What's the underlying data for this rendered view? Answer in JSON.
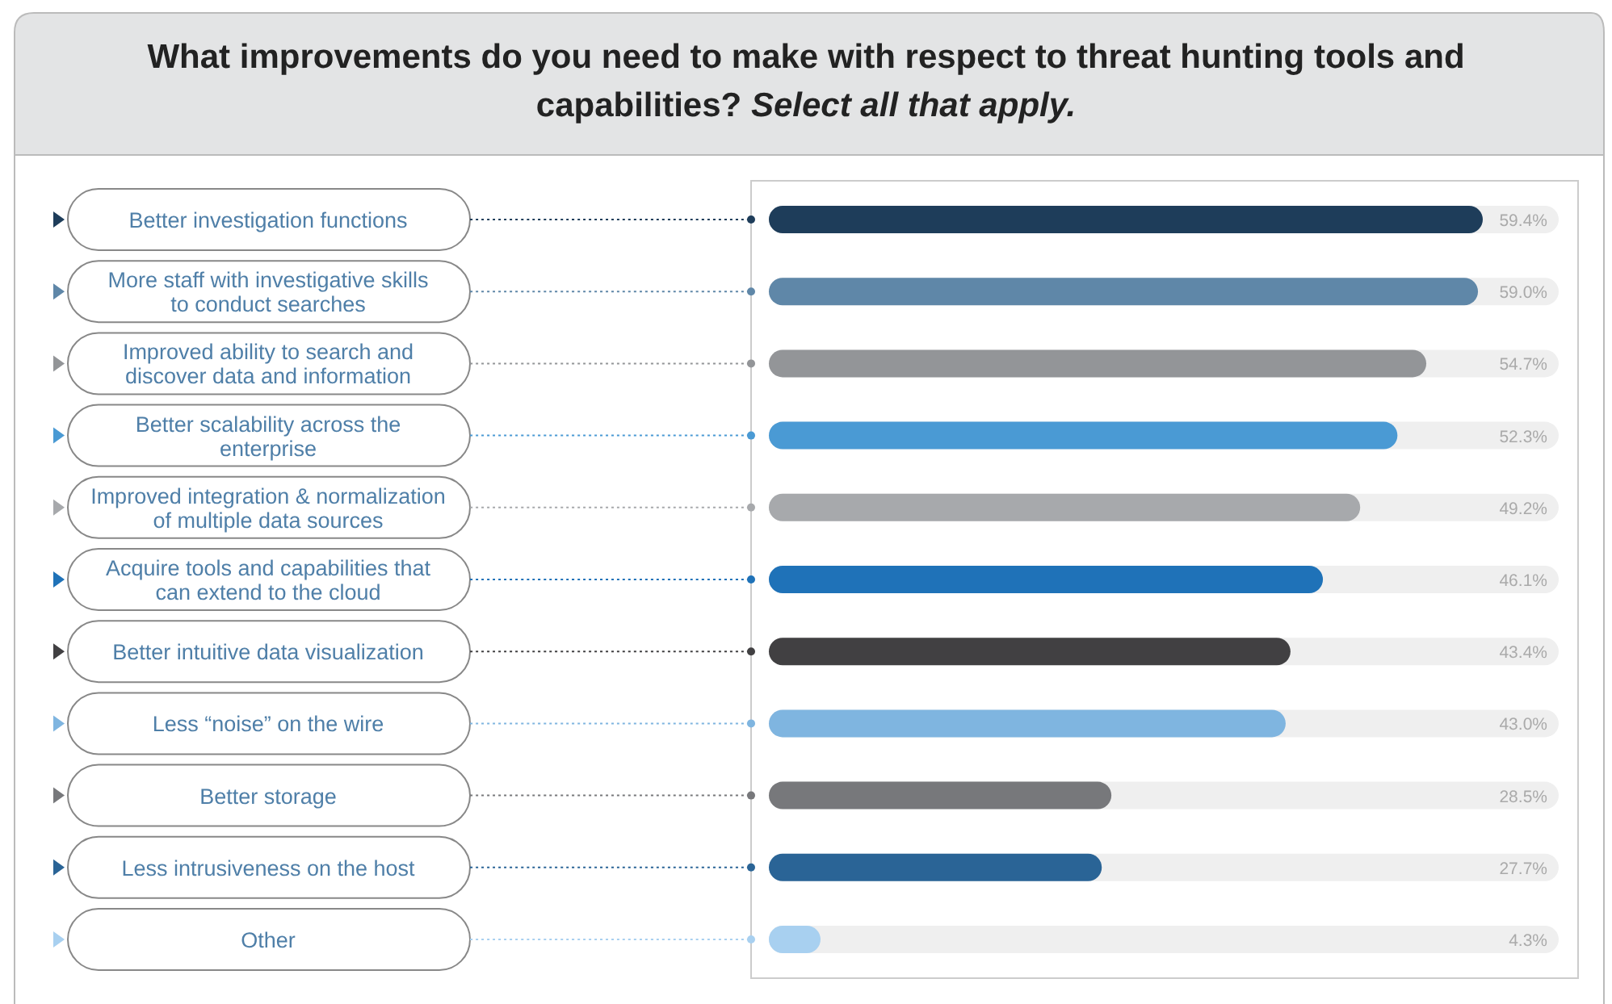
{
  "chart_data": {
    "type": "bar",
    "orientation": "horizontal",
    "title": "What improvements do you need to make with respect to threat hunting tools and capabilities?",
    "subtitle": "Select all that apply.",
    "categories": [
      "Better investigation functions",
      "More staff with investigative skills to conduct searches",
      "Improved ability to search and discover data and information",
      "Better scalability across the enterprise",
      "Improved integration & normalization of multiple data sources",
      "Acquire tools and capabilities that can extend to the cloud",
      "Better intuitive data visualization",
      "Less “noise” on the wire",
      "Better storage",
      "Less intrusiveness on the host",
      "Other"
    ],
    "values": [
      59.4,
      59.0,
      54.7,
      52.3,
      49.2,
      46.1,
      43.4,
      43.0,
      28.5,
      27.7,
      4.3
    ],
    "colors": [
      "#1e3d5a",
      "#5f87a8",
      "#939598",
      "#4a9ad4",
      "#a7a9ac",
      "#1f72b8",
      "#414042",
      "#7fb5e0",
      "#77787b",
      "#2a6496",
      "#a8d0f0"
    ],
    "value_labels": [
      "59.4%",
      "59.0%",
      "54.7%",
      "52.3%",
      "49.2%",
      "46.1%",
      "43.4%",
      "43.0%",
      "28.5%",
      "27.7%",
      "4.3%"
    ],
    "tick_labels": false
  }
}
